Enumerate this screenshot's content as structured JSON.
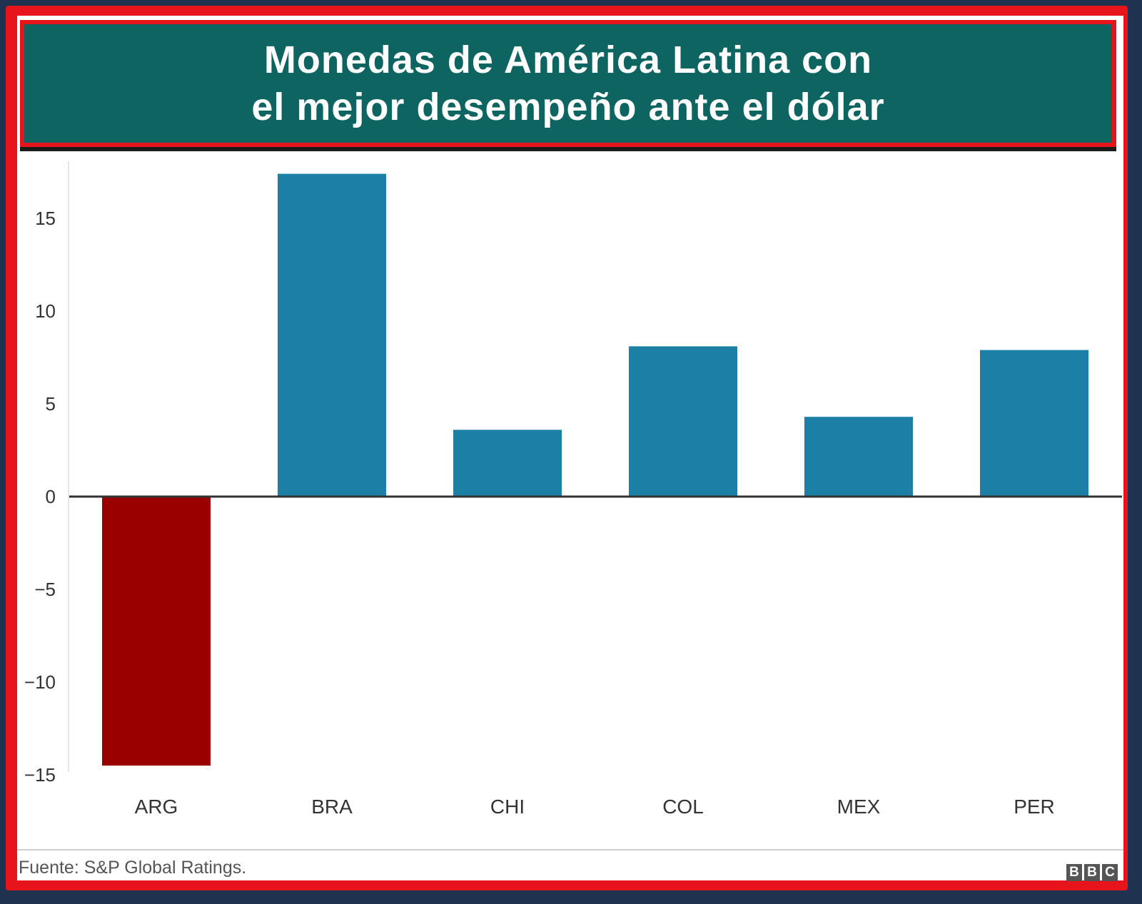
{
  "title_lines": [
    "Monedas de América Latina con",
    "el mejor desempeño ante el dólar"
  ],
  "source": "Fuente: S&P Global Ratings.",
  "logo": [
    "B",
    "B",
    "C"
  ],
  "colors": {
    "positive": "#1b7fa6",
    "negative": "#9b0000",
    "banner": "#0e6461",
    "frame": "#e8141b"
  },
  "chart_data": {
    "type": "bar",
    "categories": [
      "ARG",
      "BRA",
      "CHI",
      "COL",
      "MEX",
      "PER"
    ],
    "values": [
      -14.5,
      17.4,
      3.6,
      8.1,
      4.3,
      7.9
    ],
    "yticks": [
      15,
      10,
      5,
      0,
      -5,
      -10,
      -15
    ],
    "ylim": [
      -15,
      17.5
    ],
    "xlabel": "",
    "ylabel": "",
    "grid": false,
    "legend": "none"
  }
}
